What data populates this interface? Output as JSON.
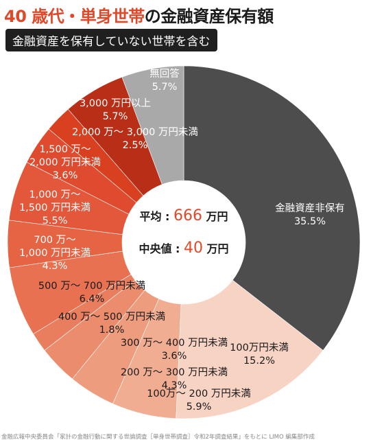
{
  "title": {
    "accent": "40 歳代・単身世帯",
    "rest": "の金融資産保有額"
  },
  "subtitle": "金融資産を保有していない世帯を含む",
  "center": {
    "mean_label": "平均 : ",
    "mean_value": "666",
    "mean_unit": " 万円",
    "median_label": "中央値 : ",
    "median_value": "40",
    "median_unit": " 万円"
  },
  "source": "金融広報中央委員会「家計の金融行動に関する世論調査［単身世帯調査］令和2年調査結果」をもとに LIMO 編集部作成",
  "colors": {
    "accent": "#e0482a",
    "dark": "#4d4d4d",
    "grey": "#a9a9a9",
    "text_dark": "#1a1a1a"
  },
  "chart_data": {
    "type": "pie",
    "donut": true,
    "slices": [
      {
        "label": "金融資産非保有",
        "value": 35.5,
        "color": "#4d4d4d",
        "text_color": "#ffffff"
      },
      {
        "label": "100万円未満",
        "value": 15.2,
        "color": "#f7d3c4",
        "text_color": "#1a1a1a"
      },
      {
        "label": "100万～ 200 万円未満",
        "value": 5.9,
        "color": "#f1ad92",
        "text_color": "#1a1a1a"
      },
      {
        "label": "200 万～ 300 万円未満",
        "value": 4.3,
        "color": "#ee9c7e",
        "text_color": "#1a1a1a"
      },
      {
        "label": "300 万～ 400 万円未満",
        "value": 3.6,
        "color": "#eb8c6c",
        "text_color": "#1a1a1a"
      },
      {
        "label": "400 万～ 500 万円未満",
        "value": 1.8,
        "color": "#e97e5e",
        "text_color": "#1a1a1a"
      },
      {
        "label": "500 万～ 700 万円未満",
        "value": 6.4,
        "color": "#e77150",
        "text_color": "#1a1a1a"
      },
      {
        "label": "700 万～ 1,000 万円未満",
        "value": 4.3,
        "color": "#e56444",
        "text_color": "#ffffff"
      },
      {
        "label": "1,000 万～ 1,500 万円未満",
        "value": 5.5,
        "color": "#e3573a",
        "text_color": "#ffffff"
      },
      {
        "label": "1,500 万～ 2,000 万円未満",
        "value": 3.6,
        "color": "#df4b2f",
        "text_color": "#ffffff"
      },
      {
        "label": "2,000 万～ 3,000 万円未満",
        "value": 2.5,
        "color": "#d8401f",
        "text_color": "#ffffff"
      },
      {
        "label": "3,000 万円以上",
        "value": 5.7,
        "color": "#b82e16",
        "text_color": "#ffffff"
      },
      {
        "label": "無回答",
        "value": 5.7,
        "color": "#a9a9a9",
        "text_color": "#ffffff"
      }
    ]
  }
}
